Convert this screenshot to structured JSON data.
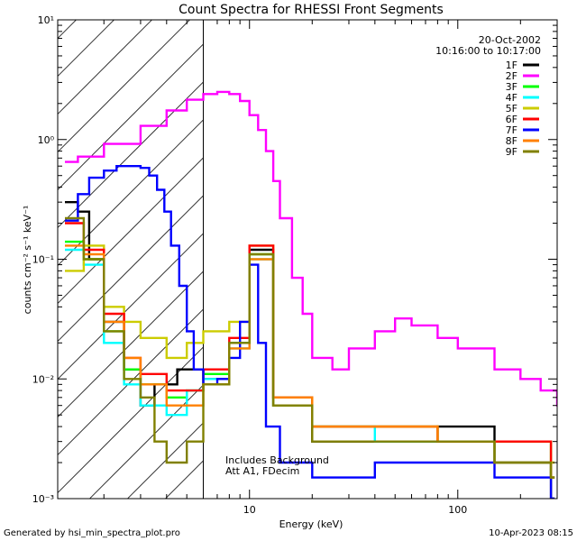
{
  "chart_data": {
    "type": "line",
    "title": "Count Spectra for RHESSI Front Segments",
    "xlabel": "Energy (keV)",
    "ylabel": "counts cm⁻² s⁻¹ keV⁻¹",
    "xscale": "log",
    "yscale": "log",
    "xlim": [
      1.2,
      300
    ],
    "ylim": [
      0.001,
      10
    ],
    "x_major_ticks": [
      {
        "value": 10,
        "label": "10"
      },
      {
        "value": 100,
        "label": "100"
      }
    ],
    "y_major_ticks": [
      {
        "value": 0.001,
        "label": "10⁻³"
      },
      {
        "value": 0.01,
        "label": "10⁻²"
      },
      {
        "value": 0.1,
        "label": "10⁻¹"
      },
      {
        "value": 1,
        "label": "10⁰"
      },
      {
        "value": 10,
        "label": "10¹"
      }
    ],
    "date": "20-Oct-2002",
    "time_range": "10:16:00 to 10:17:00",
    "hatched_region": {
      "x_from": 1.2,
      "x_to": 6
    },
    "annotation_lines": [
      "Includes Background",
      "Att A1, FDecim"
    ],
    "series": [
      {
        "name": "1F",
        "color": "#000000",
        "points": [
          [
            1.3,
            0.3
          ],
          [
            1.5,
            0.25
          ],
          [
            1.7,
            0.1
          ],
          [
            2.0,
            0.03
          ],
          [
            2.5,
            0.012
          ],
          [
            3,
            0.006
          ],
          [
            3.5,
            0.009
          ],
          [
            4.5,
            0.012
          ],
          [
            6,
            0.01
          ],
          [
            8,
            0.02
          ],
          [
            10,
            0.12
          ],
          [
            13,
            0.006
          ],
          [
            20,
            0.003
          ],
          [
            40,
            0.003
          ],
          [
            80,
            0.004
          ],
          [
            150,
            0.002
          ],
          [
            280,
            0.001
          ]
        ]
      },
      {
        "name": "2F",
        "color": "#ff00ff",
        "points": [
          [
            1.3,
            0.65
          ],
          [
            1.5,
            0.72
          ],
          [
            2,
            0.92
          ],
          [
            3,
            1.3
          ],
          [
            4,
            1.75
          ],
          [
            5,
            2.15
          ],
          [
            6,
            2.4
          ],
          [
            7,
            2.5
          ],
          [
            8,
            2.4
          ],
          [
            9,
            2.1
          ],
          [
            10,
            1.6
          ],
          [
            11,
            1.2
          ],
          [
            12,
            0.8
          ],
          [
            13,
            0.45
          ],
          [
            14,
            0.22
          ],
          [
            16,
            0.07
          ],
          [
            18,
            0.035
          ],
          [
            20,
            0.015
          ],
          [
            25,
            0.012
          ],
          [
            30,
            0.018
          ],
          [
            40,
            0.025
          ],
          [
            50,
            0.032
          ],
          [
            60,
            0.028
          ],
          [
            80,
            0.022
          ],
          [
            100,
            0.018
          ],
          [
            150,
            0.012
          ],
          [
            200,
            0.01
          ],
          [
            250,
            0.008
          ],
          [
            300,
            0.006
          ]
        ]
      },
      {
        "name": "3F",
        "color": "#00ff00",
        "points": [
          [
            1.3,
            0.14
          ],
          [
            1.6,
            0.1
          ],
          [
            2.0,
            0.025
          ],
          [
            2.5,
            0.012
          ],
          [
            3,
            0.009
          ],
          [
            4,
            0.007
          ],
          [
            5,
            0.008
          ],
          [
            6,
            0.011
          ],
          [
            8,
            0.02
          ],
          [
            10,
            0.11
          ],
          [
            13,
            0.007
          ],
          [
            20,
            0.004
          ],
          [
            40,
            0.004
          ],
          [
            80,
            0.003
          ],
          [
            150,
            0.003
          ],
          [
            280,
            0.0015
          ]
        ]
      },
      {
        "name": "4F",
        "color": "#00ffff",
        "points": [
          [
            1.3,
            0.12
          ],
          [
            1.6,
            0.09
          ],
          [
            2.0,
            0.02
          ],
          [
            2.5,
            0.009
          ],
          [
            3,
            0.006
          ],
          [
            4,
            0.005
          ],
          [
            5,
            0.008
          ],
          [
            6,
            0.01
          ],
          [
            8,
            0.018
          ],
          [
            10,
            0.1
          ],
          [
            13,
            0.006
          ],
          [
            20,
            0.004
          ],
          [
            40,
            0.003
          ],
          [
            80,
            0.003
          ],
          [
            150,
            0.002
          ],
          [
            280,
            0.0015
          ]
        ]
      },
      {
        "name": "5F",
        "color": "#cccc00",
        "points": [
          [
            1.3,
            0.08
          ],
          [
            1.6,
            0.13
          ],
          [
            2.0,
            0.04
          ],
          [
            2.5,
            0.03
          ],
          [
            3,
            0.022
          ],
          [
            4,
            0.015
          ],
          [
            5,
            0.02
          ],
          [
            6,
            0.025
          ],
          [
            8,
            0.03
          ],
          [
            10,
            0.13
          ],
          [
            13,
            0.006
          ],
          [
            20,
            0.004
          ],
          [
            40,
            0.004
          ],
          [
            80,
            0.003
          ],
          [
            150,
            0.003
          ],
          [
            280,
            0.002
          ]
        ]
      },
      {
        "name": "6F",
        "color": "#ff0000",
        "points": [
          [
            1.3,
            0.2
          ],
          [
            1.6,
            0.12
          ],
          [
            2.0,
            0.035
          ],
          [
            2.5,
            0.015
          ],
          [
            3,
            0.011
          ],
          [
            4,
            0.008
          ],
          [
            5,
            0.008
          ],
          [
            6,
            0.012
          ],
          [
            8,
            0.022
          ],
          [
            10,
            0.13
          ],
          [
            13,
            0.007
          ],
          [
            20,
            0.004
          ],
          [
            40,
            0.004
          ],
          [
            80,
            0.003
          ],
          [
            150,
            0.003
          ],
          [
            280,
            0.0015
          ]
        ]
      },
      {
        "name": "7F",
        "color": "#0000ff",
        "points": [
          [
            1.3,
            0.21
          ],
          [
            1.5,
            0.35
          ],
          [
            1.7,
            0.48
          ],
          [
            2.0,
            0.55
          ],
          [
            2.3,
            0.6
          ],
          [
            2.7,
            0.6
          ],
          [
            3.0,
            0.58
          ],
          [
            3.3,
            0.5
          ],
          [
            3.6,
            0.38
          ],
          [
            3.9,
            0.25
          ],
          [
            4.2,
            0.13
          ],
          [
            4.6,
            0.06
          ],
          [
            5.0,
            0.025
          ],
          [
            5.4,
            0.012
          ],
          [
            6,
            0.009
          ],
          [
            7,
            0.01
          ],
          [
            8,
            0.015
          ],
          [
            9,
            0.03
          ],
          [
            10,
            0.09
          ],
          [
            11,
            0.02
          ],
          [
            12,
            0.004
          ],
          [
            14,
            0.002
          ],
          [
            20,
            0.0015
          ],
          [
            40,
            0.002
          ],
          [
            80,
            0.002
          ],
          [
            150,
            0.0015
          ],
          [
            280,
            0.001
          ]
        ]
      },
      {
        "name": "8F",
        "color": "#ff8000",
        "points": [
          [
            1.3,
            0.13
          ],
          [
            1.6,
            0.11
          ],
          [
            2.0,
            0.03
          ],
          [
            2.5,
            0.015
          ],
          [
            3,
            0.009
          ],
          [
            4,
            0.006
          ],
          [
            5,
            0.006
          ],
          [
            6,
            0.009
          ],
          [
            8,
            0.018
          ],
          [
            10,
            0.1
          ],
          [
            13,
            0.007
          ],
          [
            20,
            0.004
          ],
          [
            40,
            0.004
          ],
          [
            80,
            0.003
          ],
          [
            150,
            0.002
          ],
          [
            280,
            0.0015
          ]
        ]
      },
      {
        "name": "9F",
        "color": "#808000",
        "points": [
          [
            1.3,
            0.22
          ],
          [
            1.6,
            0.1
          ],
          [
            2.0,
            0.025
          ],
          [
            2.5,
            0.01
          ],
          [
            3,
            0.007
          ],
          [
            3.5,
            0.003
          ],
          [
            4,
            0.002
          ],
          [
            5,
            0.003
          ],
          [
            6,
            0.009
          ],
          [
            8,
            0.02
          ],
          [
            10,
            0.11
          ],
          [
            13,
            0.006
          ],
          [
            20,
            0.003
          ],
          [
            40,
            0.003
          ],
          [
            80,
            0.003
          ],
          [
            150,
            0.002
          ],
          [
            280,
            0.0015
          ]
        ]
      }
    ]
  },
  "footer": {
    "generated_by": "Generated by hsi_min_spectra_plot.pro",
    "timestamp": "10-Apr-2023 08:15"
  },
  "colors": {
    "background": "#ffffff",
    "axes": "#000000"
  }
}
